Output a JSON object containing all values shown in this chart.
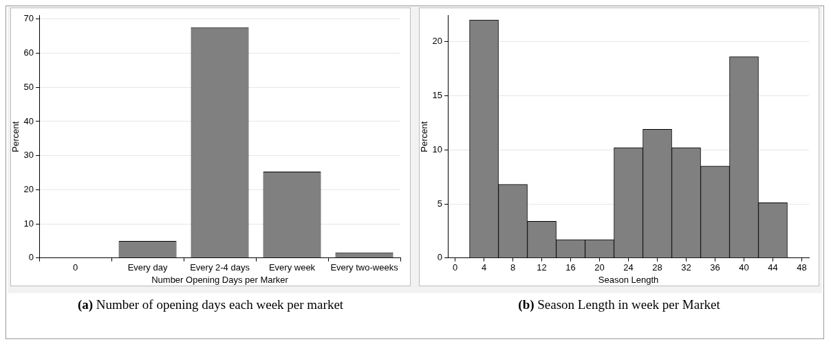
{
  "chart_data": [
    {
      "type": "bar",
      "categories": [
        "0",
        "Every day",
        "Every 2-4 days",
        "Every week",
        "Every two-weeks"
      ],
      "values": [
        null,
        5,
        67.6,
        25.3,
        1.6
      ],
      "color": "#808080",
      "xlabel": "Number Opening Days per Marker",
      "ylabel": "Percent",
      "ylim": [
        0,
        71
      ],
      "yticks": [
        0,
        10,
        20,
        30,
        40,
        50,
        60,
        70
      ],
      "grid": "y",
      "annotations": [
        "(a) Number of opening days each week per market"
      ]
    },
    {
      "type": "histogram",
      "bins": [
        2,
        6,
        10,
        14,
        18,
        22,
        26,
        30,
        34,
        38,
        42,
        46
      ],
      "values": [
        22,
        6.8,
        3.4,
        1.7,
        1.7,
        10.2,
        11.9,
        10.2,
        8.5,
        18.6,
        5.1
      ],
      "color": "#808080",
      "xlabel": "Season Length",
      "ylabel": "Percent",
      "xlim": [
        -1,
        49
      ],
      "xticks": [
        0,
        4,
        8,
        12,
        16,
        20,
        24,
        28,
        32,
        36,
        40,
        44,
        48
      ],
      "ylim": [
        0,
        22.4
      ],
      "yticks": [
        0,
        5,
        10,
        15,
        20
      ],
      "grid": "y",
      "annotations": [
        "(b) Season Length in week per Market"
      ]
    }
  ]
}
